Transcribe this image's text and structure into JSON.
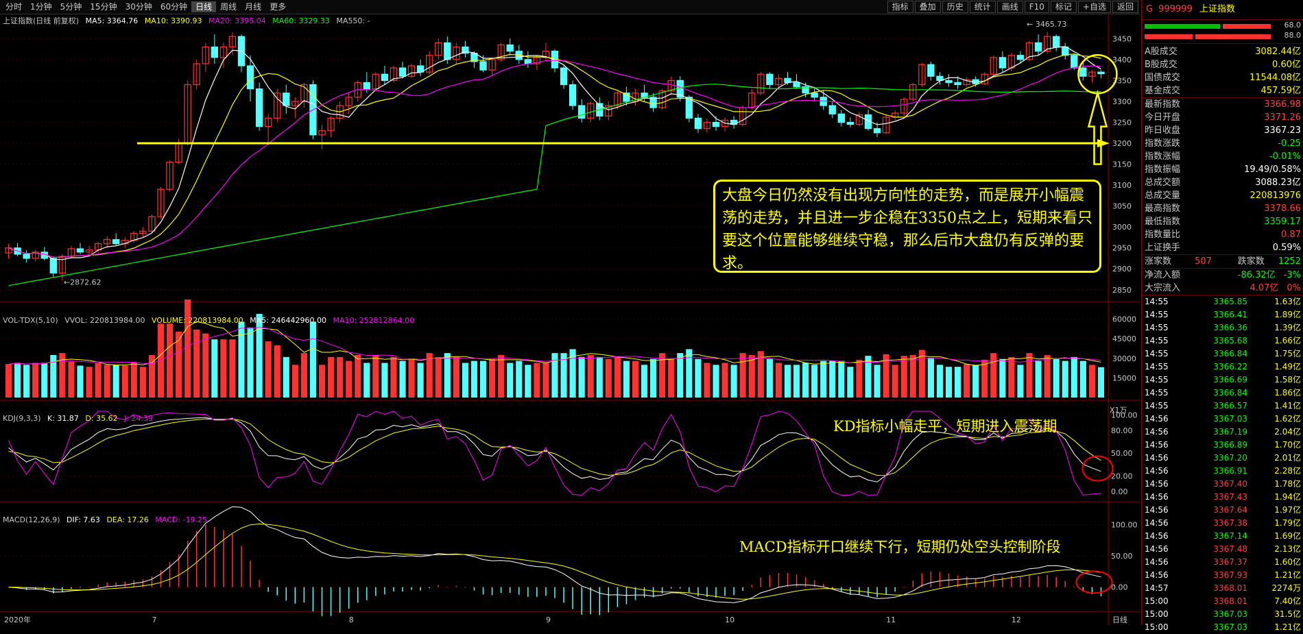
{
  "toolbar": {
    "tabs": [
      "分时",
      "1分钟",
      "5分钟",
      "15分钟",
      "30分钟",
      "60分钟",
      "日线",
      "周线",
      "月线",
      "更多"
    ],
    "active_tab": "日线",
    "tools": [
      "指标",
      "叠加",
      "历史",
      "统计",
      "画线",
      "F10",
      "标记",
      "+自选",
      "返回"
    ]
  },
  "main_legend": {
    "title": "上证指数(日线 前复权)",
    "ma5": "MA5: 3364.76",
    "ma10": "MA10: 3390.93",
    "ma20": "MA20: 3395.04",
    "ma60": "MA60: 3329.33",
    "ma550": "MA550: -"
  },
  "vol_legend": {
    "name": "VOL-TDX(5,10)",
    "vvol": "VVOL: 220813984.00",
    "volume": "VOLUME: 220813984.00",
    "ma5": "MA5: 246442960.00",
    "ma10": "MA10: 252812864.00",
    "unit": "X1万"
  },
  "kdj_legend": {
    "name": "KDJ(9,3,3)",
    "k": "K: 31.87",
    "d": "D: 35.62",
    "j": "J: 24.39"
  },
  "macd_legend": {
    "name": "MACD(12,26,9)",
    "dif": "DIF: 7.63",
    "dea": "DEA: 17.26",
    "macd": "MACD: -19.25"
  },
  "annotations": {
    "main_callout": "大盘今日仍然没有出现方向性的走势，而是展开小幅震荡的走势，并且进一步企稳在3350点之上，短期来看只要这个位置能够继续守稳，那么后市大盘仍有反弹的要求。",
    "kd_note": "KD指标小幅走平，短期进入震荡期",
    "macd_note": "MACD指标开口继续下行，短期仍处空头控制阶段",
    "high_label": "3465.73",
    "low_label": "2872.62"
  },
  "colors": {
    "up": "#ff3232",
    "down": "#54ffff",
    "ma5": "#ffffff",
    "ma10": "#ffff00",
    "ma20": "#ff00ff",
    "ma60": "#00ff00",
    "highlight": "#ffff00",
    "circle": "#ff0000"
  },
  "chart_data": {
    "type": "candlestick",
    "x_labels": [
      "2020年",
      "7",
      "8",
      "9",
      "10",
      "11",
      "12",
      "日线"
    ],
    "price_axis": [
      3450,
      3400,
      3350,
      3300,
      3250,
      3200,
      3150,
      3100,
      3050,
      3000,
      2950,
      2900,
      2850
    ],
    "price_range": [
      2830,
      3480
    ],
    "support_line": 3200,
    "volume_axis": [
      60000,
      45000,
      30000,
      15000
    ],
    "kdj_axis": [
      100.0,
      80.0,
      50.0,
      20.0,
      0.0
    ],
    "macd_axis": [
      100.0,
      50.0,
      0.0
    ],
    "candles": [
      [
        2938,
        2960,
        2925,
        2950
      ],
      [
        2950,
        2962,
        2930,
        2935
      ],
      [
        2935,
        2945,
        2915,
        2925
      ],
      [
        2925,
        2945,
        2918,
        2940
      ],
      [
        2940,
        2952,
        2920,
        2925
      ],
      [
        2925,
        2930,
        2880,
        2890
      ],
      [
        2890,
        2935,
        2872,
        2930
      ],
      [
        2930,
        2955,
        2925,
        2948
      ],
      [
        2948,
        2962,
        2935,
        2940
      ],
      [
        2940,
        2955,
        2930,
        2945
      ],
      [
        2945,
        2965,
        2938,
        2960
      ],
      [
        2960,
        2978,
        2950,
        2970
      ],
      [
        2970,
        2985,
        2955,
        2960
      ],
      [
        2960,
        2975,
        2950,
        2968
      ],
      [
        2968,
        2990,
        2962,
        2985
      ],
      [
        2985,
        3000,
        2975,
        2990
      ],
      [
        2990,
        3030,
        2985,
        3025
      ],
      [
        3025,
        3095,
        3020,
        3090
      ],
      [
        3090,
        3160,
        3085,
        3155
      ],
      [
        3155,
        3210,
        3150,
        3200
      ],
      [
        3200,
        3350,
        3195,
        3340
      ],
      [
        3340,
        3400,
        3330,
        3390
      ],
      [
        3390,
        3440,
        3370,
        3430
      ],
      [
        3430,
        3460,
        3390,
        3405
      ],
      [
        3405,
        3440,
        3380,
        3430
      ],
      [
        3430,
        3465,
        3410,
        3455
      ],
      [
        3455,
        3460,
        3370,
        3385
      ],
      [
        3385,
        3410,
        3300,
        3330
      ],
      [
        3330,
        3345,
        3230,
        3240
      ],
      [
        3240,
        3270,
        3195,
        3260
      ],
      [
        3260,
        3330,
        3250,
        3320
      ],
      [
        3320,
        3340,
        3270,
        3290
      ],
      [
        3290,
        3310,
        3260,
        3300
      ],
      [
        3300,
        3345,
        3285,
        3340
      ],
      [
        3340,
        3350,
        3210,
        3220
      ],
      [
        3220,
        3245,
        3185,
        3230
      ],
      [
        3230,
        3265,
        3215,
        3260
      ],
      [
        3260,
        3300,
        3250,
        3290
      ],
      [
        3290,
        3320,
        3270,
        3310
      ],
      [
        3310,
        3350,
        3300,
        3345
      ],
      [
        3345,
        3370,
        3320,
        3330
      ],
      [
        3330,
        3370,
        3325,
        3365
      ],
      [
        3365,
        3385,
        3340,
        3350
      ],
      [
        3350,
        3385,
        3345,
        3380
      ],
      [
        3380,
        3395,
        3355,
        3360
      ],
      [
        3360,
        3390,
        3355,
        3385
      ],
      [
        3385,
        3400,
        3360,
        3370
      ],
      [
        3370,
        3420,
        3365,
        3410
      ],
      [
        3410,
        3450,
        3400,
        3440
      ],
      [
        3440,
        3455,
        3390,
        3400
      ],
      [
        3400,
        3440,
        3390,
        3430
      ],
      [
        3430,
        3445,
        3405,
        3415
      ],
      [
        3415,
        3420,
        3380,
        3395
      ],
      [
        3395,
        3410,
        3370,
        3375
      ],
      [
        3375,
        3405,
        3360,
        3400
      ],
      [
        3400,
        3440,
        3395,
        3435
      ],
      [
        3435,
        3450,
        3410,
        3420
      ],
      [
        3420,
        3435,
        3390,
        3400
      ],
      [
        3400,
        3420,
        3380,
        3390
      ],
      [
        3390,
        3410,
        3375,
        3405
      ],
      [
        3405,
        3440,
        3395,
        3420
      ],
      [
        3420,
        3425,
        3370,
        3380
      ],
      [
        3380,
        3385,
        3330,
        3340
      ],
      [
        3340,
        3350,
        3280,
        3290
      ],
      [
        3290,
        3305,
        3250,
        3260
      ],
      [
        3260,
        3300,
        3250,
        3295
      ],
      [
        3295,
        3310,
        3255,
        3265
      ],
      [
        3265,
        3300,
        3255,
        3290
      ],
      [
        3290,
        3325,
        3280,
        3320
      ],
      [
        3320,
        3335,
        3290,
        3300
      ],
      [
        3300,
        3330,
        3290,
        3320
      ],
      [
        3320,
        3340,
        3300,
        3310
      ],
      [
        3310,
        3320,
        3275,
        3285
      ],
      [
        3285,
        3330,
        3280,
        3325
      ],
      [
        3325,
        3360,
        3315,
        3350
      ],
      [
        3350,
        3360,
        3300,
        3310
      ],
      [
        3310,
        3315,
        3250,
        3260
      ],
      [
        3260,
        3270,
        3225,
        3235
      ],
      [
        3235,
        3260,
        3225,
        3250
      ],
      [
        3250,
        3265,
        3230,
        3240
      ],
      [
        3240,
        3262,
        3228,
        3255
      ],
      [
        3255,
        3265,
        3235,
        3245
      ],
      [
        3245,
        3290,
        3240,
        3285
      ],
      [
        3285,
        3330,
        3280,
        3320
      ],
      [
        3320,
        3370,
        3315,
        3365
      ],
      [
        3365,
        3370,
        3330,
        3340
      ],
      [
        3340,
        3365,
        3335,
        3355
      ],
      [
        3355,
        3370,
        3340,
        3345
      ],
      [
        3345,
        3365,
        3330,
        3335
      ],
      [
        3335,
        3345,
        3310,
        3320
      ],
      [
        3320,
        3335,
        3300,
        3310
      ],
      [
        3310,
        3325,
        3280,
        3290
      ],
      [
        3290,
        3300,
        3260,
        3270
      ],
      [
        3270,
        3280,
        3240,
        3250
      ],
      [
        3250,
        3262,
        3238,
        3245
      ],
      [
        3245,
        3275,
        3240,
        3268
      ],
      [
        3268,
        3280,
        3230,
        3235
      ],
      [
        3235,
        3250,
        3215,
        3225
      ],
      [
        3225,
        3268,
        3222,
        3262
      ],
      [
        3262,
        3278,
        3255,
        3272
      ],
      [
        3272,
        3310,
        3265,
        3305
      ],
      [
        3305,
        3345,
        3300,
        3340
      ],
      [
        3340,
        3392,
        3335,
        3388
      ],
      [
        3388,
        3395,
        3350,
        3360
      ],
      [
        3360,
        3370,
        3340,
        3350
      ],
      [
        3350,
        3365,
        3335,
        3345
      ],
      [
        3345,
        3360,
        3330,
        3340
      ],
      [
        3340,
        3358,
        3335,
        3352
      ],
      [
        3352,
        3360,
        3335,
        3342
      ],
      [
        3342,
        3370,
        3340,
        3365
      ],
      [
        3365,
        3410,
        3360,
        3405
      ],
      [
        3405,
        3420,
        3370,
        3380
      ],
      [
        3380,
        3415,
        3372,
        3410
      ],
      [
        3410,
        3420,
        3390,
        3400
      ],
      [
        3400,
        3445,
        3395,
        3440
      ],
      [
        3440,
        3460,
        3410,
        3420
      ],
      [
        3420,
        3466,
        3415,
        3455
      ],
      [
        3455,
        3460,
        3420,
        3430
      ],
      [
        3430,
        3440,
        3400,
        3410
      ],
      [
        3410,
        3415,
        3375,
        3380
      ],
      [
        3380,
        3395,
        3350,
        3360
      ],
      [
        3360,
        3375,
        3345,
        3370
      ],
      [
        3370,
        3375,
        3355,
        3366
      ]
    ]
  },
  "right_panel": {
    "code": "999999",
    "name": "上证指数",
    "header_prefix": "G",
    "bar1": "68.0",
    "bar2": "88.0",
    "turnover": [
      {
        "label": "A股成交",
        "value": "3082.44亿"
      },
      {
        "label": "B股成交",
        "value": "0.60亿"
      },
      {
        "label": "国债成交",
        "value": "11544.08亿"
      },
      {
        "label": "基金成交",
        "value": "457.59亿"
      }
    ],
    "quote": [
      {
        "label": "最新指数",
        "value": "3366.98",
        "color": "#ff4040"
      },
      {
        "label": "今日开盘",
        "value": "3371.26",
        "color": "#ff4040"
      },
      {
        "label": "昨日收盘",
        "value": "3367.23",
        "color": "#ffffff"
      },
      {
        "label": "指数涨跌",
        "value": "-0.25",
        "color": "#00ff00"
      },
      {
        "label": "指数涨幅",
        "value": "-0.01%",
        "color": "#00ff00"
      },
      {
        "label": "指数振幅",
        "value": "19.49/0.58%",
        "color": "#ffffff"
      },
      {
        "label": "总成交额",
        "value": "3088.23亿",
        "color": "#ffffff"
      },
      {
        "label": "总成交量",
        "value": "220813976",
        "color": "#ffff00"
      },
      {
        "label": "最高指数",
        "value": "3378.66",
        "color": "#ff4040"
      },
      {
        "label": "最低指数",
        "value": "3359.17",
        "color": "#00ff00"
      },
      {
        "label": "指数量比",
        "value": "0.87",
        "color": "#ff4040"
      },
      {
        "label": "上证换手",
        "value": "0.59%",
        "color": "#ffffff"
      }
    ],
    "breadth": {
      "up_label": "涨家数",
      "up": "507",
      "down_label": "跌家数",
      "down": "1252"
    },
    "flows": [
      {
        "label": "净流入额",
        "value": "-86.32亿",
        "pct": "-3%",
        "color": "#00ff00"
      },
      {
        "label": "大宗流入",
        "value": "4.07亿",
        "pct": "0%",
        "color": "#ff4040"
      }
    ],
    "ticks": [
      [
        "14:55",
        "3365.85",
        "1.63亿",
        "#00ff00"
      ],
      [
        "14:55",
        "3366.41",
        "1.89亿",
        "#00ff00"
      ],
      [
        "14:55",
        "3366.36",
        "1.39亿",
        "#00ff00"
      ],
      [
        "14:55",
        "3365.68",
        "1.66亿",
        "#00ff00"
      ],
      [
        "14:55",
        "3366.84",
        "1.75亿",
        "#00ff00"
      ],
      [
        "14:55",
        "3366.22",
        "1.49亿",
        "#00ff00"
      ],
      [
        "14:55",
        "3366.69",
        "1.58亿",
        "#00ff00"
      ],
      [
        "14:55",
        "3366.84",
        "1.86亿",
        "#00ff00"
      ],
      [
        "14:55",
        "3366.57",
        "1.41亿",
        "#00ff00"
      ],
      [
        "14:56",
        "3367.03",
        "1.62亿",
        "#00ff00"
      ],
      [
        "14:56",
        "3367.19",
        "2.04亿",
        "#00ff00"
      ],
      [
        "14:56",
        "3366.89",
        "1.70亿",
        "#00ff00"
      ],
      [
        "14:56",
        "3367.20",
        "2.01亿",
        "#00ff00"
      ],
      [
        "14:56",
        "3366.91",
        "2.28亿",
        "#00ff00"
      ],
      [
        "14:56",
        "3367.40",
        "1.78亿",
        "#ff4040"
      ],
      [
        "14:56",
        "3367.43",
        "1.94亿",
        "#ff4040"
      ],
      [
        "14:56",
        "3367.64",
        "1.97亿",
        "#ff4040"
      ],
      [
        "14:56",
        "3367.38",
        "1.79亿",
        "#ff4040"
      ],
      [
        "14:56",
        "3367.14",
        "1.69亿",
        "#00ff00"
      ],
      [
        "14:56",
        "3367.48",
        "2.13亿",
        "#ff4040"
      ],
      [
        "14:56",
        "3367.37",
        "1.60亿",
        "#ff4040"
      ],
      [
        "14:56",
        "3367.93",
        "1.21亿",
        "#ff4040"
      ],
      [
        "14:57",
        "3368.01",
        "2274万",
        "#ff4040"
      ],
      [
        "15:00",
        "3368.01",
        "7.40亿",
        "#ff4040"
      ],
      [
        "15:00",
        "3367.03",
        "31.5亿",
        "#00ff00"
      ],
      [
        "15:00",
        "3367.03",
        "1.21亿",
        "#00ff00"
      ]
    ]
  }
}
